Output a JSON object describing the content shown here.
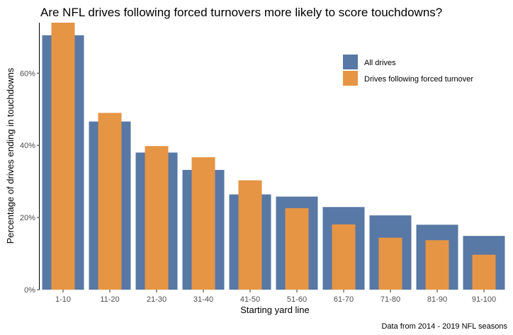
{
  "chart_data": {
    "type": "bar",
    "title": "Are NFL drives following forced turnovers more likely to score touchdowns?",
    "xlabel": "Starting yard line",
    "ylabel": "Percentage of drives ending in touchdowns",
    "caption": "Data from 2014 - 2019 NFL seasons",
    "ylim": [
      0,
      0.74
    ],
    "yticks": [
      0,
      0.2,
      0.4,
      0.6
    ],
    "ytick_labels": [
      "0%",
      "20%",
      "40%",
      "60%"
    ],
    "categories": [
      "1-10",
      "11-20",
      "21-30",
      "31-40",
      "41-50",
      "51-60",
      "61-70",
      "71-80",
      "81-90",
      "91-100"
    ],
    "series": [
      {
        "name": "All drives",
        "color": "#5878a5",
        "values": [
          0.705,
          0.466,
          0.38,
          0.332,
          0.264,
          0.258,
          0.229,
          0.206,
          0.18,
          0.149
        ]
      },
      {
        "name": "Drives following forced turnover",
        "color": "#e69545",
        "values": [
          0.74,
          0.49,
          0.398,
          0.367,
          0.303,
          0.226,
          0.181,
          0.144,
          0.137,
          0.097
        ]
      }
    ],
    "grid": false,
    "legend": "top-right"
  }
}
